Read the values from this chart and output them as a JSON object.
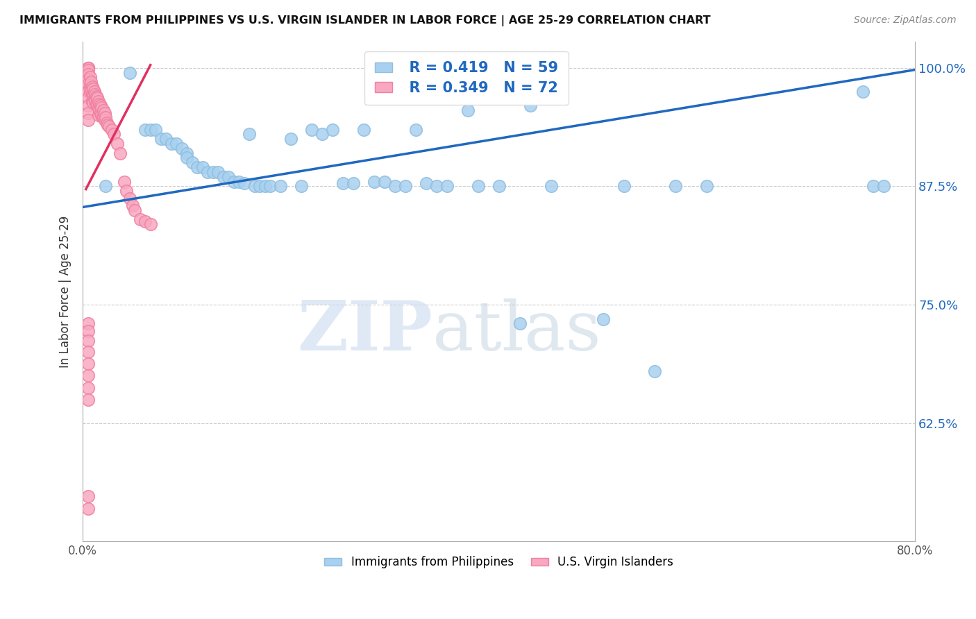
{
  "title": "IMMIGRANTS FROM PHILIPPINES VS U.S. VIRGIN ISLANDER IN LABOR FORCE | AGE 25-29 CORRELATION CHART",
  "source": "Source: ZipAtlas.com",
  "ylabel": "In Labor Force | Age 25-29",
  "xmin": 0.0,
  "xmax": 0.8,
  "ymin": 0.5,
  "ymax": 1.028,
  "yticks": [
    0.625,
    0.75,
    0.875,
    1.0
  ],
  "ytick_labels": [
    "62.5%",
    "75.0%",
    "87.5%",
    "100.0%"
  ],
  "xticks": [
    0.0,
    0.1,
    0.2,
    0.3,
    0.4,
    0.5,
    0.6,
    0.7,
    0.8
  ],
  "xtick_labels": [
    "0.0%",
    "",
    "",
    "",
    "",
    "",
    "",
    "",
    "80.0%"
  ],
  "legend_blue_R": "0.419",
  "legend_blue_N": "59",
  "legend_pink_R": "0.349",
  "legend_pink_N": "72",
  "blue_color": "#A8D0F0",
  "pink_color": "#F8A8C0",
  "blue_line_color": "#2068C0",
  "pink_line_color": "#E03060",
  "watermark_zip": "ZIP",
  "watermark_atlas": "atlas",
  "blue_scatter_x": [
    0.022,
    0.045,
    0.06,
    0.065,
    0.07,
    0.075,
    0.08,
    0.085,
    0.09,
    0.095,
    0.1,
    0.1,
    0.105,
    0.11,
    0.115,
    0.12,
    0.125,
    0.13,
    0.135,
    0.14,
    0.145,
    0.15,
    0.155,
    0.16,
    0.165,
    0.17,
    0.175,
    0.18,
    0.19,
    0.2,
    0.21,
    0.22,
    0.23,
    0.24,
    0.25,
    0.26,
    0.27,
    0.28,
    0.29,
    0.3,
    0.31,
    0.32,
    0.33,
    0.34,
    0.35,
    0.37,
    0.38,
    0.4,
    0.42,
    0.43,
    0.45,
    0.5,
    0.52,
    0.55,
    0.57,
    0.6,
    0.75,
    0.76,
    0.77
  ],
  "blue_scatter_y": [
    0.875,
    0.995,
    0.935,
    0.935,
    0.935,
    0.925,
    0.925,
    0.92,
    0.92,
    0.915,
    0.91,
    0.905,
    0.9,
    0.895,
    0.895,
    0.89,
    0.89,
    0.89,
    0.885,
    0.885,
    0.88,
    0.88,
    0.878,
    0.93,
    0.875,
    0.875,
    0.875,
    0.875,
    0.875,
    0.925,
    0.875,
    0.935,
    0.93,
    0.935,
    0.878,
    0.878,
    0.935,
    0.88,
    0.88,
    0.875,
    0.875,
    0.935,
    0.878,
    0.875,
    0.875,
    0.955,
    0.875,
    0.875,
    0.73,
    0.96,
    0.875,
    0.735,
    0.875,
    0.68,
    0.875,
    0.875,
    0.975,
    0.875,
    0.875
  ],
  "pink_scatter_x": [
    0.005,
    0.005,
    0.005,
    0.005,
    0.005,
    0.005,
    0.005,
    0.005,
    0.005,
    0.005,
    0.005,
    0.005,
    0.005,
    0.007,
    0.007,
    0.007,
    0.008,
    0.008,
    0.009,
    0.009,
    0.009,
    0.01,
    0.01,
    0.01,
    0.011,
    0.011,
    0.012,
    0.012,
    0.013,
    0.013,
    0.014,
    0.014,
    0.015,
    0.015,
    0.015,
    0.016,
    0.016,
    0.017,
    0.017,
    0.018,
    0.018,
    0.019,
    0.02,
    0.02,
    0.021,
    0.021,
    0.022,
    0.023,
    0.024,
    0.025,
    0.028,
    0.03,
    0.033,
    0.036,
    0.04,
    0.042,
    0.045,
    0.048,
    0.05,
    0.055,
    0.06,
    0.065,
    0.005,
    0.005,
    0.005,
    0.005,
    0.005,
    0.005,
    0.005,
    0.005,
    0.005,
    0.005
  ],
  "pink_scatter_y": [
    1.0,
    1.0,
    1.0,
    1.0,
    0.998,
    0.993,
    0.988,
    0.983,
    0.975,
    0.968,
    0.96,
    0.952,
    0.945,
    0.99,
    0.982,
    0.975,
    0.985,
    0.978,
    0.98,
    0.972,
    0.965,
    0.978,
    0.97,
    0.963,
    0.975,
    0.968,
    0.972,
    0.965,
    0.97,
    0.962,
    0.968,
    0.96,
    0.965,
    0.958,
    0.95,
    0.962,
    0.955,
    0.96,
    0.952,
    0.958,
    0.95,
    0.948,
    0.955,
    0.948,
    0.952,
    0.945,
    0.948,
    0.942,
    0.94,
    0.938,
    0.935,
    0.93,
    0.92,
    0.91,
    0.88,
    0.87,
    0.862,
    0.855,
    0.85,
    0.84,
    0.838,
    0.835,
    0.73,
    0.722,
    0.712,
    0.7,
    0.688,
    0.675,
    0.662,
    0.65,
    0.548,
    0.535
  ],
  "blue_line_x": [
    0.0,
    0.8
  ],
  "blue_line_y": [
    0.853,
    0.998
  ],
  "pink_line_x": [
    0.003,
    0.065
  ],
  "pink_line_y": [
    0.872,
    1.003
  ]
}
